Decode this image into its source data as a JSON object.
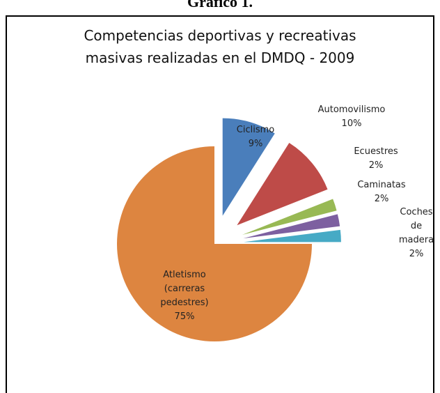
{
  "header": "Gráfico 1.",
  "chart_data": {
    "type": "pie",
    "title": "Competencias deportivas y recreativas masivas realizadas en el DMDQ - 2009",
    "categories": [
      "Ciclismo",
      "Automovilismo",
      "Ecuestres",
      "Caminatas",
      "Coches de madera",
      "Atletismo (carreras pedestres)"
    ],
    "values": [
      9,
      10,
      2,
      2,
      2,
      75
    ],
    "value_labels": [
      "9%",
      "10%",
      "2%",
      "2%",
      "2%",
      "75%"
    ],
    "colors": [
      "#4a7ebb",
      "#be4b48",
      "#98b954",
      "#7d60a0",
      "#46aac5",
      "#dd8540"
    ],
    "exploded": [
      true,
      true,
      true,
      true,
      true,
      false
    ]
  }
}
